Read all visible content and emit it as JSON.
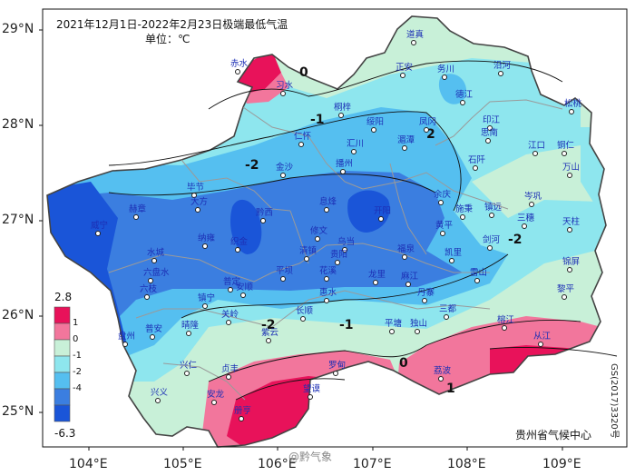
{
  "title": "2021年12月1日-2022年2月23日极端最低气温",
  "unit": "单位：℃",
  "lat_ticks": [
    "29°N",
    "28°N",
    "27°N",
    "26°N",
    "25°N"
  ],
  "lon_ticks": [
    "104°E",
    "105°E",
    "106°E",
    "107°E",
    "108°E",
    "109°E"
  ],
  "legend": {
    "max": "2.8",
    "min": "-6.3",
    "labels": [
      "1",
      "0",
      "-1",
      "-2",
      "-4"
    ],
    "colors": [
      "#e8125a",
      "#f2769c",
      "#c8f0d8",
      "#8ee6ee",
      "#55bff0",
      "#3b7ee0",
      "#1a55d8"
    ]
  },
  "contour_labels": [
    "0",
    "-1",
    "-2",
    "-2",
    "-2",
    "-1",
    "0",
    "1",
    "2"
  ],
  "cities": [
    "赤水",
    "习水",
    "道真",
    "正安",
    "务川",
    "沿河",
    "德江",
    "桐梓",
    "绥阳",
    "凤冈",
    "印江",
    "松桃",
    "仁怀",
    "汇川",
    "湄潭",
    "思南",
    "江口",
    "铜仁",
    "金沙",
    "播州",
    "石阡",
    "万山",
    "毕节",
    "大方",
    "黔西",
    "息烽",
    "开阳",
    "余庆",
    "施秉",
    "镇远",
    "岑巩",
    "赫章",
    "威宁",
    "纳雍",
    "织金",
    "修文",
    "乌当",
    "黄平",
    "三穗",
    "天柱",
    "水城",
    "清镇",
    "贵阳",
    "福泉",
    "凯里",
    "剑河",
    "锦屏",
    "六盘水",
    "普定",
    "安顺",
    "平坝",
    "花溪",
    "龙里",
    "麻江",
    "雷山",
    "黎平",
    "六枝",
    "镇宁",
    "长顺",
    "惠水",
    "丹寨",
    "榕江",
    "从江",
    "普安",
    "晴隆",
    "关岭",
    "紫云",
    "罗甸",
    "平塘",
    "独山",
    "三都",
    "荔波",
    "兴仁",
    "贞丰",
    "望谟",
    "兴义",
    "安龙",
    "册亨",
    "盘州"
  ],
  "source": "贵州省气候中心",
  "approval": "GS(2017)3320号",
  "watermark": "@黔气象"
}
